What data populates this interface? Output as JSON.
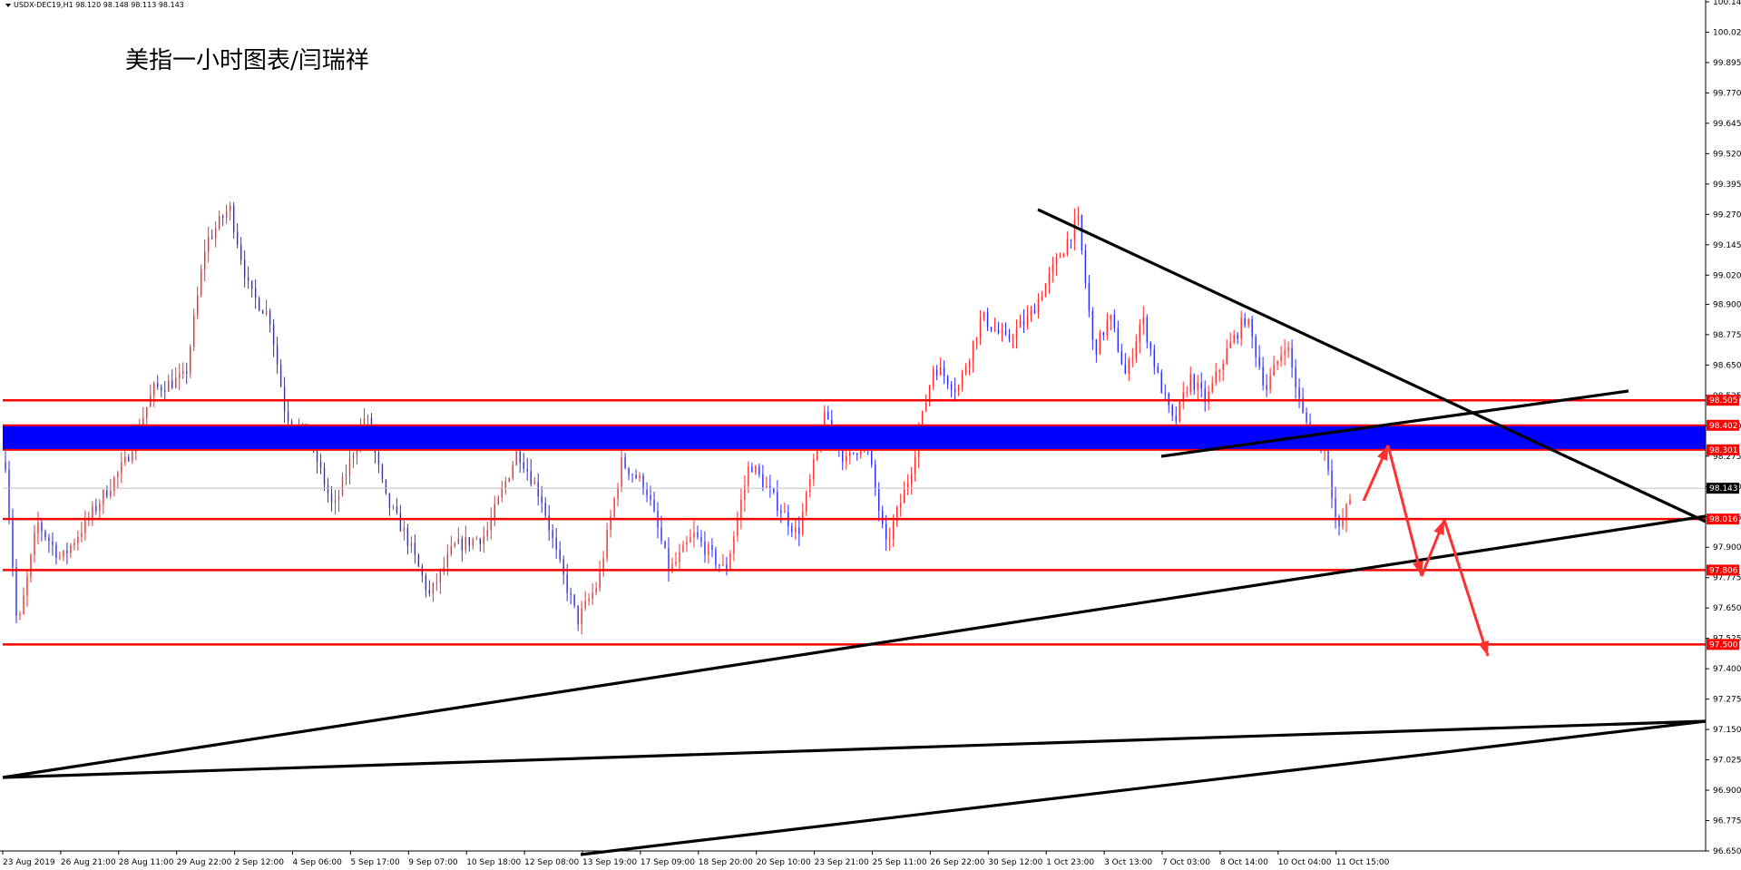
{
  "header": {
    "symbol_line": "USDX-DEC19,H1  98.120 98.148 98.113 98.143"
  },
  "title": "美指一小时图表/闫瑞祥",
  "colors": {
    "bull": "#ff2a2a",
    "bear": "#2a2aff",
    "level_line": "#ff0000",
    "zone": "#0000ff",
    "trend": "#000000",
    "arrow": "#ff3030",
    "current": "#000000"
  },
  "chart_data": {
    "type": "candlestick",
    "symbol": "USDX-DEC19",
    "timeframe": "H1",
    "y_axis": {
      "min": 96.65,
      "max": 100.145,
      "ticks": [
        "100.145",
        "100.020",
        "99.895",
        "99.770",
        "99.645",
        "99.520",
        "99.395",
        "99.270",
        "99.145",
        "99.020",
        "98.900",
        "98.775",
        "98.650",
        "98.525",
        "98.400",
        "98.275",
        "98.150",
        "98.025",
        "97.900",
        "97.775",
        "97.650",
        "97.525",
        "97.400",
        "97.275",
        "97.150",
        "97.025",
        "96.900",
        "96.775",
        "96.650"
      ]
    },
    "x_axis": {
      "labels": [
        "23 Aug 2019",
        "26 Aug 21:00",
        "28 Aug 11:00",
        "29 Aug 22:00",
        "2 Sep 12:00",
        "4 Sep 06:00",
        "5 Sep 17:00",
        "9 Sep 07:00",
        "10 Sep 18:00",
        "12 Sep 08:00",
        "13 Sep 19:00",
        "17 Sep 09:00",
        "18 Sep 20:00",
        "20 Sep 10:00",
        "23 Sep 21:00",
        "25 Sep 11:00",
        "26 Sep 22:00",
        "30 Sep 12:00",
        "1 Oct 23:00",
        "3 Oct 13:00",
        "7 Oct 03:00",
        "8 Oct 14:00",
        "10 Oct 04:00",
        "11 Oct 15:00"
      ]
    },
    "price_path": [
      [
        0,
        98.25
      ],
      [
        3,
        97.55
      ],
      [
        8,
        98.0
      ],
      [
        14,
        97.85
      ],
      [
        22,
        98.05
      ],
      [
        30,
        98.25
      ],
      [
        37,
        98.55
      ],
      [
        45,
        98.6
      ],
      [
        50,
        99.15
      ],
      [
        56,
        99.3
      ],
      [
        61,
        98.95
      ],
      [
        66,
        98.85
      ],
      [
        70,
        98.45
      ],
      [
        76,
        98.35
      ],
      [
        82,
        98.05
      ],
      [
        90,
        98.45
      ],
      [
        95,
        98.1
      ],
      [
        100,
        97.95
      ],
      [
        106,
        97.7
      ],
      [
        112,
        97.9
      ],
      [
        120,
        97.95
      ],
      [
        128,
        98.3
      ],
      [
        134,
        98.1
      ],
      [
        138,
        97.85
      ],
      [
        143,
        97.6
      ],
      [
        148,
        97.75
      ],
      [
        154,
        98.25
      ],
      [
        160,
        98.15
      ],
      [
        166,
        97.8
      ],
      [
        172,
        97.95
      ],
      [
        180,
        97.8
      ],
      [
        186,
        98.25
      ],
      [
        192,
        98.1
      ],
      [
        198,
        97.95
      ],
      [
        205,
        98.45
      ],
      [
        210,
        98.25
      ],
      [
        215,
        98.35
      ],
      [
        220,
        97.9
      ],
      [
        226,
        98.2
      ],
      [
        232,
        98.65
      ],
      [
        238,
        98.55
      ],
      [
        244,
        98.85
      ],
      [
        250,
        98.75
      ],
      [
        256,
        98.85
      ],
      [
        262,
        99.05
      ],
      [
        268,
        99.25
      ],
      [
        272,
        98.7
      ],
      [
        276,
        98.85
      ],
      [
        280,
        98.6
      ],
      [
        284,
        98.85
      ],
      [
        288,
        98.6
      ],
      [
        292,
        98.4
      ],
      [
        296,
        98.6
      ],
      [
        300,
        98.5
      ],
      [
        305,
        98.7
      ],
      [
        310,
        98.85
      ],
      [
        315,
        98.55
      ],
      [
        320,
        98.75
      ],
      [
        324,
        98.45
      ],
      [
        327,
        98.35
      ],
      [
        330,
        98.3
      ],
      [
        333,
        97.95
      ],
      [
        336,
        98.1
      ]
    ],
    "levels": [
      {
        "label": "98.505",
        "value": 98.505
      },
      {
        "label": "98.016",
        "value": 98.016
      },
      {
        "label": "97.806",
        "value": 97.806
      },
      {
        "label": "97.500",
        "value": 97.5
      }
    ],
    "zone": {
      "high_label": "98.402",
      "low_label": "98.301",
      "high": 98.402,
      "low": 98.301
    },
    "current_price": {
      "label": "98.143",
      "value": 98.143
    }
  }
}
